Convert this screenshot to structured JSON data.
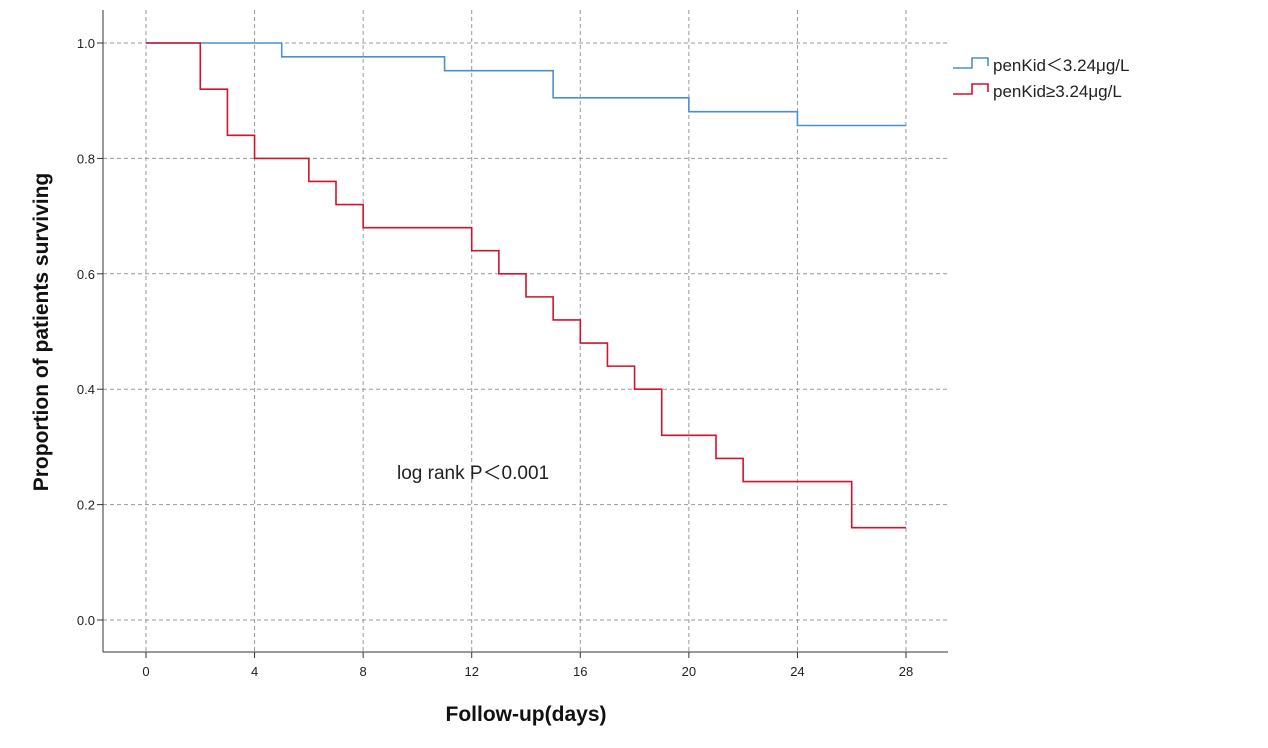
{
  "chart_data": {
    "type": "line",
    "subtype": "kaplan-meier step",
    "xlabel": "Follow-up(days)",
    "ylabel": "Proportion of patients surviving",
    "xlim": [
      0,
      28
    ],
    "ylim": [
      0,
      1
    ],
    "xticks": [
      "0",
      "4",
      "8",
      "12",
      "16",
      "20",
      "24",
      "28"
    ],
    "yticks": [
      "0.0",
      "0.2",
      "0.4",
      "0.6",
      "0.8",
      "1.0"
    ],
    "grid": true,
    "legend_position": "top-right",
    "annotation": "log rank P＜0.001",
    "series": [
      {
        "name": "penKid＜3.24μg/L",
        "color": "#4a8fd0",
        "x": [
          0,
          5,
          11,
          15,
          20,
          24,
          28
        ],
        "y": [
          1.0,
          0.976,
          0.952,
          0.905,
          0.881,
          0.857,
          0.857
        ]
      },
      {
        "name": "penKid≥3.24μg/L",
        "color": "#d0142c",
        "x": [
          0,
          2,
          3,
          4,
          6,
          7,
          8,
          12,
          13,
          14,
          15,
          16,
          17,
          18,
          19,
          21,
          22,
          26,
          28
        ],
        "y": [
          1.0,
          0.92,
          0.84,
          0.8,
          0.76,
          0.72,
          0.68,
          0.64,
          0.6,
          0.56,
          0.52,
          0.48,
          0.44,
          0.4,
          0.32,
          0.28,
          0.24,
          0.16,
          0.16
        ]
      }
    ]
  }
}
